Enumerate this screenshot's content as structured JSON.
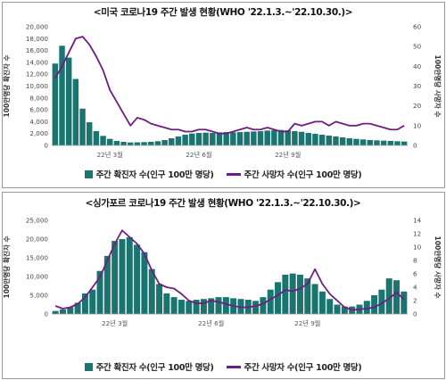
{
  "colors": {
    "bar": "#1a7470",
    "line": "#6f1d80",
    "frame": "#9a9a9a",
    "grid": "#d0d0d0"
  },
  "chart_data": [
    {
      "type": "bar",
      "title": "<미국 코로나19 주간 발생 현황(WHO '22.1.3.~'22.10.30.)>",
      "ylabel": "100만명당 확진자 수",
      "y2label": "100만명당 사망자 수",
      "ylim": [
        0,
        20000
      ],
      "y2lim": [
        0,
        60
      ],
      "yticks": [
        "0",
        "2,000",
        "4,000",
        "6,000",
        "8,000",
        "10,000",
        "12,000",
        "14,000",
        "16,000",
        "18,000",
        "20,000"
      ],
      "y2ticks": [
        "0",
        "10",
        "20",
        "30",
        "40",
        "50",
        "60"
      ],
      "x_tick_labels": [
        {
          "label": "22년 3월",
          "index": 8
        },
        {
          "label": "22년 6월",
          "index": 21
        },
        {
          "label": "22년 9월",
          "index": 34
        }
      ],
      "grid": false,
      "legend_position": "bottom",
      "series": [
        {
          "name": "주간 확진자 수(인구 100만 명당)",
          "kind": "bar",
          "axis": "left",
          "values": [
            13800,
            16800,
            14800,
            11200,
            6200,
            3900,
            2400,
            1600,
            1100,
            750,
            600,
            500,
            520,
            550,
            600,
            700,
            900,
            1200,
            1500,
            1800,
            2000,
            2100,
            2150,
            2100,
            2200,
            2250,
            2200,
            2250,
            2300,
            2350,
            2400,
            2500,
            2550,
            2600,
            2550,
            2400,
            2300,
            2100,
            1950,
            1800,
            1650,
            1500,
            1350,
            1200,
            1100,
            1000,
            900,
            850,
            800,
            750,
            700,
            650
          ]
        },
        {
          "name": "주간 사망자 수(인구 100만 명당)",
          "kind": "line",
          "axis": "right",
          "values": [
            34,
            40,
            47,
            54,
            55,
            51,
            45,
            38,
            28,
            22,
            16,
            10,
            14,
            13,
            11,
            10,
            9,
            8,
            8,
            7,
            7,
            8,
            8,
            7,
            6,
            6,
            7,
            8,
            9,
            8,
            8,
            9,
            8,
            7,
            7,
            11,
            10,
            11,
            12,
            12,
            10,
            12,
            11,
            10,
            10,
            11,
            11,
            10,
            9,
            8,
            8,
            10
          ]
        }
      ]
    },
    {
      "type": "bar",
      "title": "<싱가포르 코로나19 주간 발생 현황(WHO '22.1.3.~'22.10.30.)>",
      "ylabel": "100만명당 확진자 수",
      "y2label": "100만명당 사망자 수",
      "ylim": [
        0,
        25000
      ],
      "y2lim": [
        0,
        14
      ],
      "yticks": [
        "0",
        "5,000",
        "10,000",
        "15,000",
        "20,000",
        "25,000"
      ],
      "y2ticks": [
        "0",
        "2",
        "4",
        "6",
        "8",
        "10",
        "12",
        "14"
      ],
      "x_tick_labels": [
        {
          "label": "22년 3월",
          "index": 8
        },
        {
          "label": "22년 6월",
          "index": 21
        },
        {
          "label": "22년 9월",
          "index": 34
        }
      ],
      "grid": false,
      "legend_position": "bottom",
      "series": [
        {
          "name": "주간 확진자 수(인구 100만 명당)",
          "kind": "bar",
          "axis": "left",
          "values": [
            800,
            1200,
            1800,
            3000,
            5500,
            6500,
            11500,
            15500,
            19500,
            20000,
            20500,
            18500,
            16500,
            12000,
            8000,
            5500,
            4500,
            3800,
            3500,
            3800,
            4000,
            4200,
            4500,
            4500,
            4200,
            4000,
            3800,
            3500,
            4500,
            6500,
            8500,
            10500,
            10800,
            10500,
            9500,
            8000,
            6000,
            4000,
            2500,
            2000,
            2000,
            2500,
            3500,
            5000,
            6500,
            9500,
            9000,
            6000
          ]
        },
        {
          "name": "주간 사망자 수(인구 100만 명당)",
          "kind": "line",
          "axis": "right",
          "values": [
            1.2,
            0.8,
            1.0,
            1.5,
            2.5,
            4.0,
            5.5,
            8.0,
            10.5,
            12.5,
            11.5,
            10.5,
            9.0,
            6.5,
            4.5,
            4.0,
            3.8,
            3.0,
            2.0,
            1.6,
            1.6,
            2.0,
            1.8,
            1.5,
            1.2,
            1.0,
            1.0,
            1.2,
            1.5,
            2.2,
            2.8,
            3.6,
            3.4,
            3.8,
            4.5,
            6.7,
            4.5,
            3.0,
            2.0,
            1.0,
            0.6,
            0.7,
            0.8,
            1.0,
            1.6,
            2.3,
            3.2,
            2.2
          ]
        }
      ]
    }
  ]
}
